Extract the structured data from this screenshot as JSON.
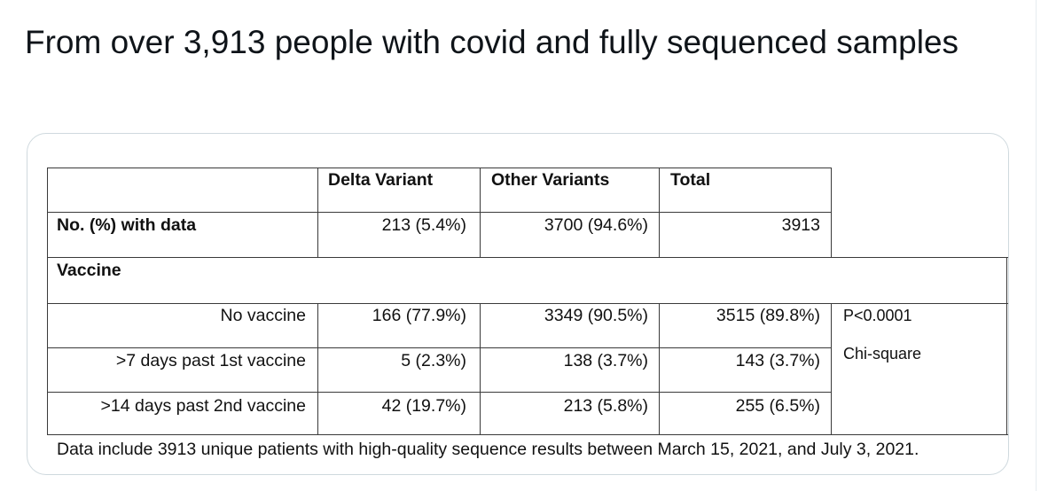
{
  "tweet": {
    "text": "From over 3,913 people with covid and fully sequenced samples"
  },
  "table": {
    "headers": [
      "",
      "Delta Variant",
      "Other Variants",
      "Total"
    ],
    "with_data": {
      "label": "No. (%) with data",
      "delta": "213 (5.4%)",
      "other": "3700 (94.6%)",
      "total": "3913"
    },
    "section_label": "Vaccine",
    "rows": [
      {
        "label": "No vaccine",
        "delta": "166 (77.9%)",
        "other": "3349 (90.5%)",
        "total": "3515 (89.8%)"
      },
      {
        "label": ">7 days past 1st vaccine",
        "delta": "5 (2.3%)",
        "other": "138 (3.7%)",
        "total": "143 (3.7%)"
      },
      {
        "label": ">14 days past 2nd vaccine",
        "delta": "42 (19.7%)",
        "other": "213 (5.8%)",
        "total": "255 (6.5%)"
      }
    ],
    "p_value": "P<0.0001",
    "test": "Chi-square",
    "footnote": "Data include 3913 unique patients with high-quality sequence results between March 15, 2021, and July 3, 2021."
  }
}
